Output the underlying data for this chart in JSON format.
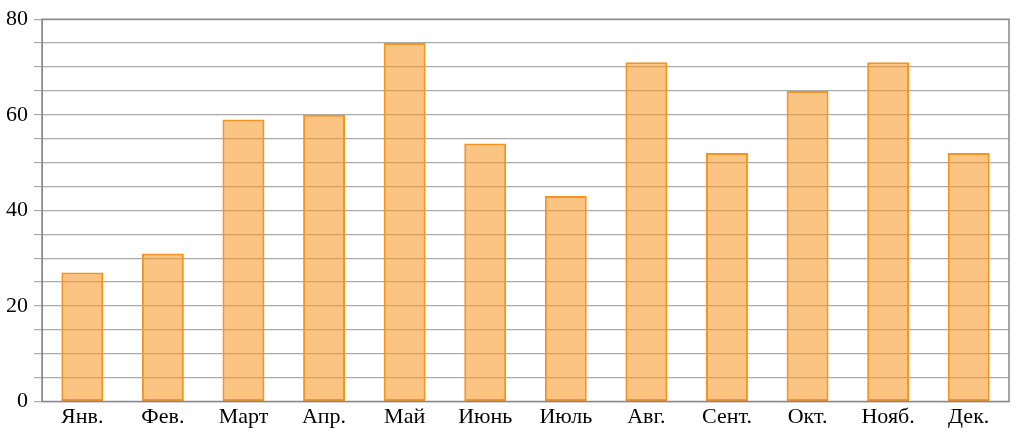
{
  "chart_data": {
    "type": "bar",
    "categories": [
      "Янв.",
      "Фев.",
      "Март",
      "Апр.",
      "Май",
      "Июнь",
      "Июль",
      "Авг.",
      "Сент.",
      "Окт.",
      "Нояб.",
      "Дек."
    ],
    "values": [
      27,
      31,
      59,
      60,
      75,
      54,
      43,
      71,
      52,
      65,
      71,
      52
    ],
    "color": "#f7931e",
    "ylim": [
      0,
      80
    ],
    "yticks": [
      0,
      {
        "value": 5,
        "label": null
      },
      {
        "value": 10,
        "label": null
      },
      {
        "value": 15,
        "label": null
      },
      20,
      {
        "value": 25,
        "label": null
      },
      {
        "value": 30,
        "label": null
      },
      {
        "value": 35,
        "label": null
      },
      40,
      {
        "value": 45,
        "label": null
      },
      {
        "value": 50,
        "label": null
      },
      {
        "value": 55,
        "label": null
      },
      60,
      {
        "value": 65,
        "label": null
      },
      {
        "value": 70,
        "label": null
      },
      {
        "value": 75,
        "label": null
      },
      80
    ],
    "grid": "y",
    "legend": false
  }
}
